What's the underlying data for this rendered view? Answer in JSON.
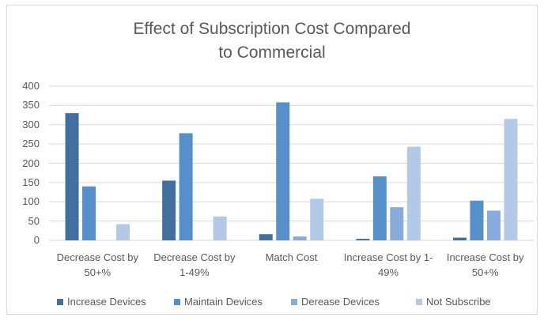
{
  "chart_data": {
    "type": "bar",
    "title": "Effect of Subscription Cost Compared to Commercial",
    "categories": [
      "Decrease Cost by 50+%",
      "Decrease Cost by 1-49%",
      "Match Cost",
      "Increase Cost by 1-49%",
      "Increase Cost by 50+%"
    ],
    "series": [
      {
        "name": "Increase Devices",
        "color": "#41709f",
        "values": [
          330,
          155,
          16,
          4,
          7
        ]
      },
      {
        "name": "Maintain Devices",
        "color": "#5690cb",
        "values": [
          140,
          278,
          358,
          166,
          103
        ]
      },
      {
        "name": "Derease Devices",
        "color": "#87acdc",
        "values": [
          0,
          0,
          10,
          86,
          77
        ]
      },
      {
        "name": "Not Subscribe",
        "color": "#b3c9e8",
        "values": [
          42,
          62,
          108,
          243,
          315
        ]
      }
    ],
    "ylim": [
      0,
      400
    ],
    "yticks": [
      0,
      50,
      100,
      150,
      200,
      250,
      300,
      350,
      400
    ],
    "grid": true,
    "legend": "bottom"
  }
}
